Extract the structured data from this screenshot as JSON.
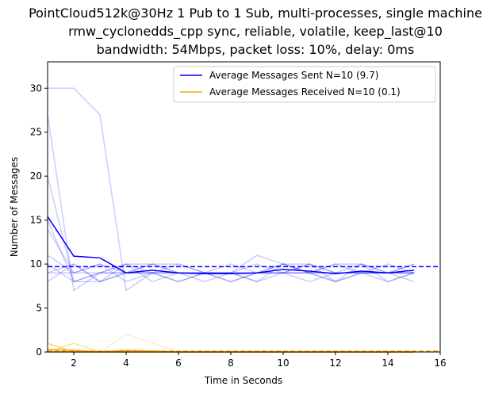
{
  "chart_data": {
    "type": "line",
    "title": [
      "PointCloud512k@30Hz 1 Pub to 1 Sub, multi-processes, single machine",
      "rmw_cyclonedds_cpp sync, reliable, volatile, keep_last@10",
      "bandwidth: 54Mbps, packet loss: 10%, delay: 0ms"
    ],
    "xlabel": "Time in Seconds",
    "ylabel": "Number of Messages",
    "xlim": [
      1,
      16
    ],
    "ylim": [
      0,
      33
    ],
    "xticks": [
      2,
      4,
      6,
      8,
      10,
      12,
      14,
      16
    ],
    "yticks": [
      0,
      5,
      10,
      15,
      20,
      25,
      30
    ],
    "grid": false,
    "legend_position": "upper-right",
    "x": [
      1,
      2,
      3,
      4,
      5,
      6,
      7,
      8,
      9,
      10,
      11,
      12,
      13,
      14,
      15
    ],
    "series": [
      {
        "name": "Average Messages Sent N=10 (9.7)",
        "color": "#0000ff",
        "mean_line": 9.7,
        "values": [
          15.4,
          10.9,
          10.7,
          9.0,
          9.3,
          9.0,
          8.9,
          8.9,
          9.0,
          9.4,
          9.2,
          8.9,
          9.2,
          9.0,
          9.3
        ],
        "runs": [
          [
            30,
            30,
            27,
            7,
            9,
            10,
            9,
            9,
            9,
            9,
            10,
            9,
            9,
            9,
            9
          ],
          [
            27,
            7,
            9,
            10,
            10,
            9,
            9,
            9,
            10,
            9,
            10,
            9,
            10,
            9,
            10
          ],
          [
            20,
            8,
            8,
            9,
            9,
            9,
            9,
            8,
            9,
            10,
            9,
            9,
            9,
            9,
            9
          ],
          [
            15,
            8,
            9,
            9,
            9,
            9,
            9,
            9,
            9,
            9,
            9,
            9,
            9,
            9,
            9
          ],
          [
            14,
            9,
            9,
            10,
            9,
            8,
            9,
            9,
            8,
            9,
            8,
            9,
            9,
            8,
            9
          ],
          [
            11,
            9,
            10,
            9,
            9,
            9,
            8,
            9,
            8,
            10,
            9,
            8,
            9,
            9,
            9
          ],
          [
            10,
            8,
            9,
            9,
            10,
            10,
            9,
            10,
            9,
            9,
            9,
            10,
            10,
            9,
            10
          ],
          [
            9,
            10,
            8,
            10,
            8,
            9,
            9,
            9,
            11,
            10,
            9,
            10,
            9,
            9,
            8
          ],
          [
            9,
            9,
            10,
            8,
            9,
            8,
            9,
            8,
            9,
            9,
            9,
            8,
            10,
            8,
            9
          ],
          [
            8,
            10,
            8,
            9,
            10,
            9,
            9,
            9,
            9,
            10,
            10,
            8,
            9,
            10,
            9
          ]
        ]
      },
      {
        "name": "Average Messages Received N=10 (0.1)",
        "color": "#ffa500",
        "mean_line": 0.1,
        "values": [
          0.3,
          0.2,
          0.0,
          0.2,
          0.1,
          0.0,
          0.0,
          0.0,
          0.0,
          0.0,
          0.0,
          0.0,
          0.0,
          0.0,
          0.0
        ],
        "runs": [
          [
            1,
            0,
            0,
            2,
            1,
            0,
            0,
            0,
            0,
            0,
            0,
            0,
            0,
            0,
            0
          ],
          [
            0,
            1,
            0,
            0,
            0,
            0,
            0,
            0,
            0,
            0,
            0,
            0,
            0,
            0,
            0
          ],
          [
            1,
            0,
            0,
            0,
            0,
            0,
            0,
            0,
            0,
            0,
            0,
            0,
            0,
            0,
            0
          ],
          [
            0,
            0,
            0,
            0,
            0,
            0,
            0,
            0,
            0,
            0,
            0,
            0,
            0,
            0,
            0
          ],
          [
            0,
            0,
            0,
            0,
            0,
            0,
            0,
            0,
            0,
            0,
            0,
            0,
            0,
            0,
            0
          ],
          [
            1,
            0,
            0,
            0,
            0,
            0,
            0,
            0,
            0,
            0,
            0,
            0,
            0,
            0,
            0
          ],
          [
            0,
            0,
            0,
            0,
            0,
            0,
            0,
            0,
            0,
            0,
            0,
            0,
            0,
            0,
            0
          ],
          [
            0,
            0,
            0,
            0,
            0,
            0,
            0,
            0,
            0,
            0,
            0,
            0,
            0,
            0,
            0
          ],
          [
            0,
            0,
            0,
            0,
            0,
            0,
            0,
            0,
            0,
            0,
            0,
            0,
            0,
            0,
            0
          ],
          [
            0,
            1,
            0,
            0,
            0,
            0,
            0,
            0,
            0,
            0,
            0,
            0,
            0,
            0,
            0
          ]
        ]
      }
    ]
  }
}
